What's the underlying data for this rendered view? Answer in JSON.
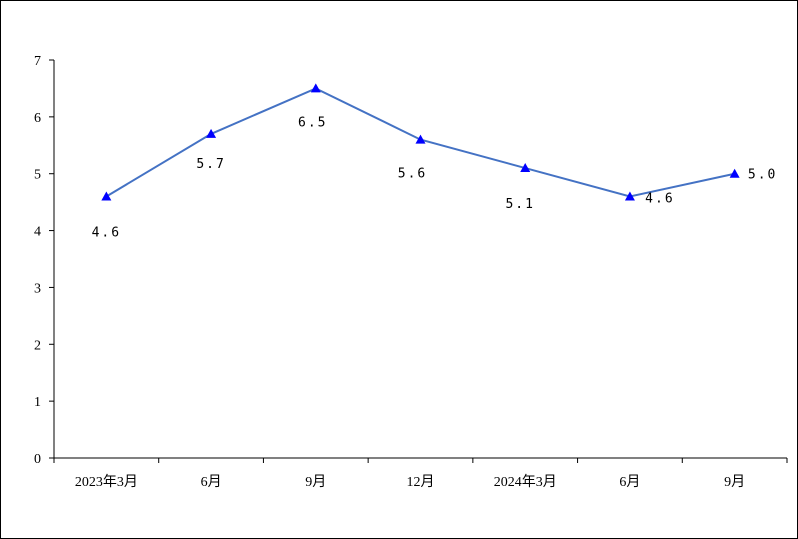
{
  "chart_data": {
    "type": "line",
    "title": "",
    "xlabel": "",
    "ylabel": "",
    "categories": [
      "2023年3月",
      "6月",
      "9月",
      "12月",
      "2024年3月",
      "6月",
      "9月"
    ],
    "series": [
      {
        "name": "",
        "values": [
          4.6,
          5.7,
          6.5,
          5.6,
          5.1,
          4.6,
          5.0
        ],
        "labels": [
          "4.6",
          "5.7",
          "6.5",
          "5.6",
          "5.1",
          "4.6",
          "5.0"
        ],
        "color": "#4472C4",
        "marker": "triangle",
        "marker_color": "#0000FF"
      }
    ],
    "ylim": [
      0,
      7
    ],
    "yticks": [
      0,
      1,
      2,
      3,
      4,
      5,
      6,
      7
    ],
    "ytick_labels": [
      "0",
      "1",
      "2",
      "3",
      "4",
      "5",
      "6",
      "7"
    ],
    "grid": false,
    "legend": "none"
  }
}
